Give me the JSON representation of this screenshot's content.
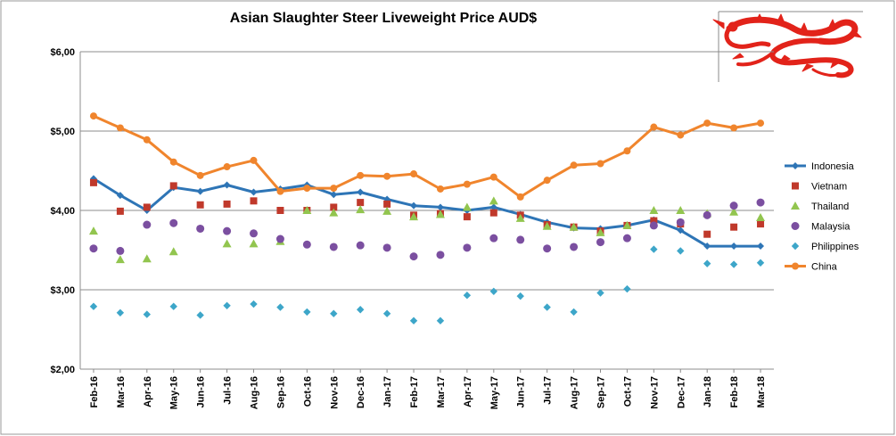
{
  "chart_data": {
    "type": "line",
    "title": "Asian Slaughter Steer Liveweight Price AUD$",
    "xlabel": "",
    "ylabel": "",
    "ylim": [
      2,
      6
    ],
    "yticks": [
      "$2,00",
      "$3,00",
      "$4,00",
      "$5,00",
      "$6,00"
    ],
    "ytick_values": [
      2,
      3,
      4,
      5,
      6
    ],
    "grid": true,
    "legend_position": "right",
    "categories": [
      "Feb-16",
      "Mar-16",
      "Apr-16",
      "May-16",
      "Jun-16",
      "Jul-16",
      "Aug-16",
      "Sep-16",
      "Oct-16",
      "Nov-16",
      "Dec-16",
      "Jan-17",
      "Feb-17",
      "Mar-17",
      "Apr-17",
      "May-17",
      "Jun-17",
      "Jul-17",
      "Aug-17",
      "Sep-17",
      "Oct-17",
      "Nov-17",
      "Dec-17",
      "Jan-18",
      "Feb-18",
      "Mar-18"
    ],
    "series": [
      {
        "name": "Indonesia",
        "style": "line-diamond",
        "color": "#2E75B6",
        "values": [
          4.4,
          4.19,
          4.0,
          4.29,
          4.24,
          4.32,
          4.23,
          4.27,
          4.32,
          4.2,
          4.23,
          4.14,
          4.06,
          4.04,
          4.0,
          4.04,
          3.95,
          3.85,
          3.78,
          3.77,
          3.81,
          3.88,
          3.75,
          3.55,
          3.55,
          3.55
        ]
      },
      {
        "name": "Vietnam",
        "style": "square",
        "color": "#C0392B",
        "values": [
          4.35,
          3.99,
          4.04,
          4.31,
          4.07,
          4.08,
          4.12,
          4.0,
          4.0,
          4.04,
          4.1,
          4.08,
          3.94,
          3.96,
          3.92,
          3.97,
          3.94,
          3.82,
          3.79,
          3.74,
          3.81,
          3.87,
          3.83,
          3.7,
          3.79,
          3.83
        ]
      },
      {
        "name": "Thailand",
        "style": "triangle",
        "color": "#92C54F",
        "values": [
          3.74,
          3.38,
          3.39,
          3.48,
          null,
          3.58,
          3.58,
          3.61,
          4.0,
          3.97,
          4.01,
          3.99,
          3.92,
          3.95,
          4.04,
          4.12,
          3.9,
          3.8,
          3.79,
          3.72,
          3.81,
          4.0,
          4.0,
          3.96,
          3.98,
          3.91
        ]
      },
      {
        "name": "Malaysia",
        "style": "circle",
        "color": "#7B4FA0",
        "values": [
          3.52,
          3.49,
          3.82,
          3.84,
          3.77,
          3.74,
          3.71,
          3.64,
          3.57,
          3.54,
          3.56,
          3.53,
          3.42,
          3.44,
          3.53,
          3.65,
          3.63,
          3.52,
          3.54,
          3.6,
          3.65,
          3.81,
          3.85,
          3.94,
          4.06,
          4.1
        ]
      },
      {
        "name": "Philippines",
        "style": "diamond",
        "color": "#3DA6C9",
        "values": [
          2.79,
          2.71,
          2.69,
          2.79,
          2.68,
          2.8,
          2.82,
          2.78,
          2.72,
          2.7,
          2.75,
          2.7,
          2.61,
          2.61,
          2.93,
          2.98,
          2.92,
          2.78,
          2.72,
          2.96,
          3.01,
          3.51,
          3.49,
          3.33,
          3.32,
          3.34
        ]
      },
      {
        "name": "China",
        "style": "line-circle",
        "color": "#F0852D",
        "values": [
          5.19,
          5.04,
          4.89,
          4.61,
          4.44,
          4.55,
          4.63,
          4.24,
          4.28,
          4.28,
          4.44,
          4.43,
          4.46,
          4.27,
          4.33,
          4.42,
          4.17,
          4.38,
          4.57,
          4.59,
          4.75,
          5.05,
          4.95,
          5.1,
          5.04,
          5.1
        ]
      }
    ]
  },
  "logo": {
    "name": "red-dragon-logo"
  }
}
